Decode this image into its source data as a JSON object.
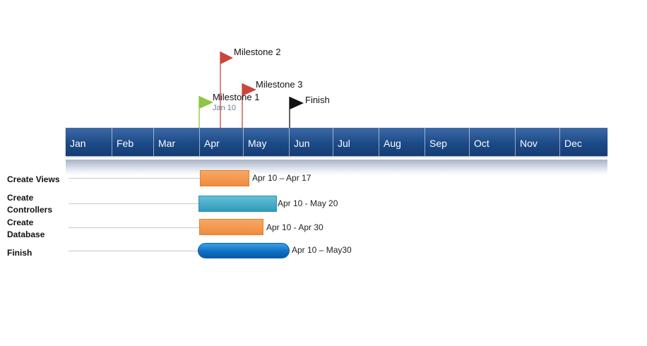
{
  "months": [
    "Jan",
    "Feb",
    "Mar",
    "Apr",
    "May",
    "Jun",
    "Jul",
    "Aug",
    "Sep",
    "Oct",
    "Nov",
    "Dec"
  ],
  "milestones": [
    {
      "name": "Milestone 2",
      "color": "#c9463f",
      "pole": "#c9463f"
    },
    {
      "name": "Milestone 3",
      "color": "#c9463f",
      "pole": "#c9463f"
    },
    {
      "name": "Milestone 1",
      "date_label": "Jan 10",
      "color": "#8dc63f",
      "pole": "#8dc63f"
    },
    {
      "name": "Finish",
      "color": "#111111",
      "pole": "#111111"
    }
  ],
  "tasks": [
    {
      "name": "Create Views",
      "range_label": "Apr 10 – Apr 17",
      "style": "orange"
    },
    {
      "name": "Create Controllers",
      "range_label": "Apr 10 - May 20",
      "style": "teal"
    },
    {
      "name": "Create Database",
      "range_label": "Apr 10 - Apr 30",
      "style": "orange"
    },
    {
      "name": "Finish",
      "range_label": "Apr 10 – May30",
      "style": "blue"
    }
  ]
}
